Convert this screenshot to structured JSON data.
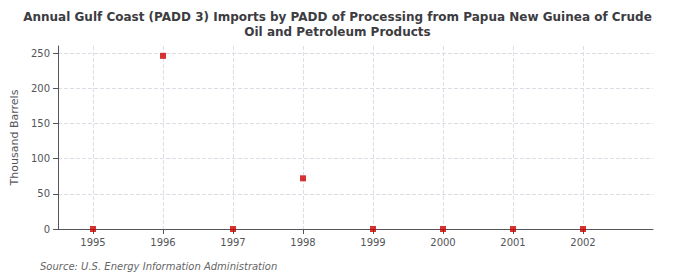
{
  "chart_data": {
    "type": "scatter",
    "title": "Annual Gulf Coast (PADD 3) Imports by PADD of Processing from Papua New Guinea of Crude\nOil and Petroleum Products",
    "ylabel": "Thousand Barrels",
    "source": "Source: U.S. Energy Information Administration",
    "x": [
      1995,
      1996,
      1997,
      1998,
      1999,
      2000,
      2001,
      2002
    ],
    "values": [
      0,
      246,
      0,
      72,
      0,
      0,
      0,
      0
    ],
    "color": "#cc0000",
    "marker": "square",
    "xlim": [
      1994.5,
      2003.0
    ],
    "ylim": [
      0,
      260
    ],
    "xticks": [
      1995,
      1996,
      1997,
      1998,
      1999,
      2000,
      2001,
      2002
    ],
    "yticks": [
      0,
      50,
      100,
      150,
      200,
      250
    ],
    "grid": true
  }
}
